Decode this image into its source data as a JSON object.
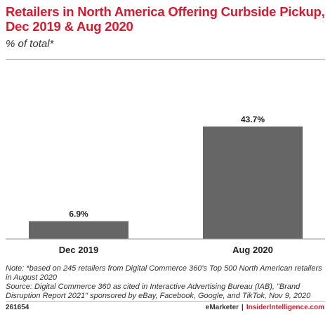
{
  "header": {
    "title": "Retailers in North America Offering Curbside Pickup, Dec 2019 & Aug 2020",
    "subtitle": "% of total*"
  },
  "chart_data": {
    "type": "bar",
    "categories": [
      "Dec 2019",
      "Aug 2020"
    ],
    "values": [
      6.9,
      43.7
    ],
    "value_labels": [
      "6.9%",
      "43.7%"
    ],
    "title": "Retailers in North America Offering Curbside Pickup, Dec 2019 & Aug 2020",
    "subtitle": "% of total*",
    "xlabel": "",
    "ylabel": "",
    "ylim": [
      0,
      50
    ],
    "grid": false,
    "legend": "none",
    "bar_color": "#666666"
  },
  "notes": {
    "note": "Note: *based on 245 retailers from Digital Commerce 360's Top 500 North American retailers in August 2020",
    "source": "Source: Digital Commerce 360 as cited in Interactive Advertising Bureau (IAB), \"Brand Disruption Report 2021\" sponsored by eBay, Facebook, Google, and TikTok, Nov 9, 2020"
  },
  "footer": {
    "chart_id": "261654",
    "brand": "eMarketer",
    "separator": "|",
    "brand2": "InsiderIntelligence.com"
  },
  "colors": {
    "title": "#d9192e",
    "bar": "#666666",
    "brand_accent": "#d9192e"
  }
}
